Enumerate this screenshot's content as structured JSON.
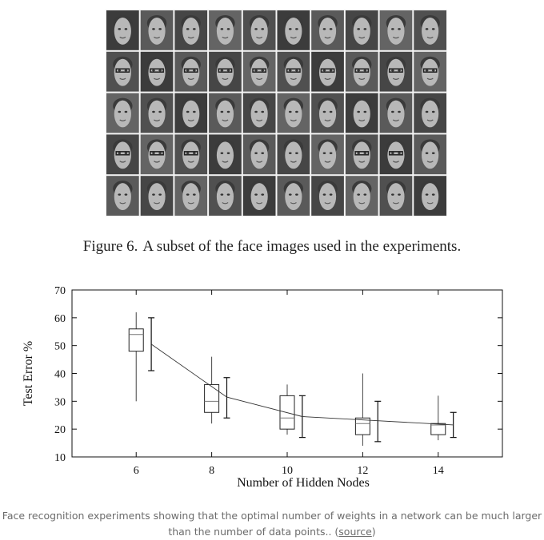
{
  "figure": {
    "label": "Figure 6.",
    "caption": "A subset of the face images used in the experiments.",
    "image_grid": {
      "rows": 5,
      "cols": 10,
      "subject": "grayscale face photographs"
    }
  },
  "chart_data": {
    "type": "box",
    "xlabel": "Number of Hidden Nodes",
    "ylabel": "Test Error %",
    "xlim": [
      4.3,
      15.7
    ],
    "ylim": [
      10,
      70
    ],
    "x_ticks": [
      6,
      8,
      10,
      12,
      14
    ],
    "y_ticks": [
      10,
      20,
      30,
      40,
      50,
      60,
      70
    ],
    "grid": false,
    "boxes": [
      {
        "x": 6,
        "min": 30,
        "q1": 48,
        "median": 54,
        "q3": 56,
        "max": 62
      },
      {
        "x": 8,
        "min": 22,
        "q1": 26,
        "median": 30,
        "q3": 36,
        "max": 46
      },
      {
        "x": 10,
        "min": 18,
        "q1": 20,
        "median": 24,
        "q3": 32,
        "max": 36
      },
      {
        "x": 12,
        "min": 14,
        "q1": 18,
        "median": 22,
        "q3": 24,
        "max": 40
      },
      {
        "x": 14,
        "min": 16,
        "q1": 18,
        "median": 21.5,
        "q3": 22,
        "max": 32
      }
    ],
    "error_bars": [
      {
        "x": 6.4,
        "min": 41,
        "mean": 50.5,
        "max": 60
      },
      {
        "x": 8.4,
        "min": 24,
        "mean": 31.5,
        "max": 38.5
      },
      {
        "x": 10.4,
        "min": 17,
        "mean": 24.5,
        "max": 32
      },
      {
        "x": 12.4,
        "min": 15.5,
        "mean": 23,
        "max": 30
      },
      {
        "x": 14.4,
        "min": 17,
        "mean": 21.5,
        "max": 26
      }
    ]
  },
  "article_caption": {
    "text": "Face recognition experiments showing that the optimal number of weights in a network can be much larger than the number of data points.. (",
    "link_text": "source",
    "closing": ")"
  }
}
